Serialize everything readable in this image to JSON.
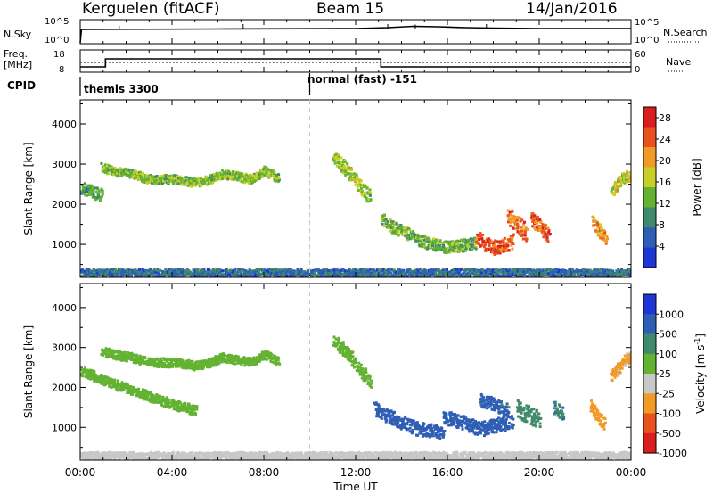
{
  "header": {
    "radar": "Kerguelen (fitACF)",
    "beam": "Beam 15",
    "date": "14/Jan/2016"
  },
  "nsky": {
    "label": "N.Sky",
    "left_ticks": [
      "10^5",
      "10^0"
    ],
    "right_label": "N.Search",
    "right_ticks": [
      "10^5",
      "10^0"
    ]
  },
  "freq": {
    "label_line1": "Freq.",
    "label_line2": "[MHz]",
    "left_ticks": [
      "18",
      "8"
    ],
    "right_label": "Nave",
    "right_ticks": [
      "60",
      "0"
    ]
  },
  "cpid": {
    "label": "CPID",
    "segments": [
      {
        "name": "themis 3300",
        "start_hour": 0
      },
      {
        "name": "normal (fast) -151",
        "start_hour": 10
      }
    ]
  },
  "time_axis": {
    "label": "Time UT",
    "ticks": [
      "00:00",
      "04:00",
      "08:00",
      "12:00",
      "16:00",
      "20:00",
      "00:00"
    ],
    "range_hours": [
      0,
      24
    ]
  },
  "chart_data": [
    {
      "type": "heatmap",
      "ylabel": "Slant Range [km]",
      "yticks": [
        "1000",
        "2000",
        "3000",
        "4000"
      ],
      "ylim": [
        180,
        4600
      ],
      "colorbar": {
        "label": "Power [dB]",
        "ticks": [
          "4",
          "8",
          "12",
          "16",
          "20",
          "24",
          "28"
        ],
        "range": [
          0,
          30
        ],
        "colors": [
          "#1f35d6",
          "#2f5fb4",
          "#3e8a6a",
          "#64b232",
          "#c8cf28",
          "#f29a26",
          "#e8521f",
          "#d81e1e"
        ]
      },
      "regions": [
        {
          "t": [
            0.9,
            1.4,
            2.2,
            3.0,
            3.6,
            4.2,
            5.0,
            5.6,
            6.2,
            6.8,
            7.4,
            8.0,
            8.6
          ],
          "r": [
            2950,
            2850,
            2780,
            2650,
            2650,
            2650,
            2560,
            2640,
            2780,
            2720,
            2650,
            2860,
            2680
          ],
          "w": 110,
          "v": 14
        },
        {
          "t": [
            0.0,
            0.5,
            0.9
          ],
          "r": [
            2450,
            2320,
            2250
          ],
          "w": 160,
          "v": 11
        },
        {
          "t": [
            11.0,
            11.4,
            11.8,
            12.2,
            12.6
          ],
          "r": [
            3200,
            3000,
            2750,
            2450,
            2200
          ],
          "w": 170,
          "v": 15
        },
        {
          "t": [
            13.1,
            13.6,
            14.2,
            14.8,
            15.4,
            16.0,
            16.6,
            17.2
          ],
          "r": [
            1650,
            1450,
            1300,
            1100,
            1020,
            950,
            1000,
            1050
          ],
          "w": 150,
          "v": 13
        },
        {
          "t": [
            17.2,
            17.6,
            18.0,
            18.4,
            18.8
          ],
          "r": [
            1200,
            1050,
            950,
            1000,
            1100
          ],
          "w": 180,
          "v": 25
        },
        {
          "t": [
            18.6,
            19.0,
            19.4
          ],
          "r": [
            1750,
            1550,
            1300
          ],
          "w": 220,
          "v": 23
        },
        {
          "t": [
            19.6,
            20.0,
            20.4
          ],
          "r": [
            1700,
            1450,
            1250
          ],
          "w": 200,
          "v": 24
        },
        {
          "t": [
            22.3,
            22.6,
            22.9
          ],
          "r": [
            1600,
            1350,
            1150
          ],
          "w": 180,
          "v": 21
        },
        {
          "t": [
            23.1,
            23.4,
            23.7,
            24.0
          ],
          "r": [
            2300,
            2550,
            2700,
            2750
          ],
          "w": 150,
          "v": 17
        },
        {
          "t": [
            0.0,
            2.0,
            4.0,
            6.0,
            8.0,
            10.0,
            12.0,
            14.0,
            16.0,
            18.0,
            20.0,
            22.0,
            24.0
          ],
          "r": [
            320,
            320,
            320,
            320,
            320,
            320,
            320,
            320,
            320,
            320,
            320,
            320,
            320
          ],
          "w": 90,
          "v": 7
        }
      ]
    },
    {
      "type": "heatmap",
      "ylabel": "Slant Range [km]",
      "yticks": [
        "1000",
        "2000",
        "3000",
        "4000"
      ],
      "ylim": [
        180,
        4600
      ],
      "colorbar": {
        "label": "Velocity [m s^-1]",
        "ticks": [
          "1000",
          "500",
          "100",
          "25",
          "-25",
          "-100",
          "-500",
          "-1000"
        ],
        "range": [
          -1000,
          1000
        ],
        "colors": [
          "#1f35d6",
          "#2f5fb4",
          "#3e8a6a",
          "#64b232",
          "#c8c8c8",
          "#f29a26",
          "#e8521f",
          "#d81e1e"
        ]
      },
      "regions": [
        {
          "t": [
            0.9,
            1.4,
            2.2,
            3.0,
            3.6,
            4.2,
            5.0,
            5.6,
            6.2,
            6.8,
            7.4,
            8.0,
            8.6
          ],
          "r": [
            2950,
            2850,
            2780,
            2650,
            2650,
            2650,
            2560,
            2640,
            2780,
            2720,
            2650,
            2860,
            2680
          ],
          "w": 110,
          "v": 0
        },
        {
          "t": [
            0.0,
            1.0,
            2.0,
            3.0,
            4.0,
            5.0
          ],
          "r": [
            2450,
            2200,
            2000,
            1800,
            1600,
            1450
          ],
          "w": 120,
          "v": 0
        },
        {
          "t": [
            11.0,
            11.4,
            11.8,
            12.2,
            12.6
          ],
          "r": [
            3200,
            3000,
            2750,
            2450,
            2200
          ],
          "w": 170,
          "v": 0
        },
        {
          "t": [
            12.8,
            13.4,
            14.0,
            14.6,
            15.2,
            15.8
          ],
          "r": [
            1500,
            1300,
            1150,
            1000,
            950,
            900
          ],
          "w": 170,
          "v": 200
        },
        {
          "t": [
            15.8,
            16.4,
            17.0,
            17.6,
            18.2,
            18.8
          ],
          "r": [
            1300,
            1200,
            1050,
            1000,
            1100,
            1150
          ],
          "w": 180,
          "v": 250
        },
        {
          "t": [
            17.4,
            17.8,
            18.2,
            18.6
          ],
          "r": [
            1700,
            1650,
            1550,
            1450
          ],
          "w": 160,
          "v": 150
        },
        {
          "t": [
            19.0,
            19.5,
            20.0
          ],
          "r": [
            1500,
            1350,
            1200
          ],
          "w": 220,
          "v": 50
        },
        {
          "t": [
            20.6,
            21.0
          ],
          "r": [
            1550,
            1350
          ],
          "w": 180,
          "v": 80
        },
        {
          "t": [
            22.2,
            22.5,
            22.8
          ],
          "r": [
            1600,
            1350,
            1100
          ],
          "w": 170,
          "v": -200
        },
        {
          "t": [
            23.1,
            23.4,
            23.7,
            24.0
          ],
          "r": [
            2300,
            2500,
            2700,
            2800
          ],
          "w": 150,
          "v": -150
        },
        {
          "t": [
            0.0,
            2.0,
            4.0,
            6.0,
            8.0,
            10.0,
            12.0,
            14.0,
            16.0,
            18.0,
            20.0,
            22.0,
            24.0
          ],
          "r": [
            320,
            320,
            320,
            320,
            320,
            320,
            320,
            320,
            320,
            320,
            320,
            320,
            320
          ],
          "w": 90,
          "v": -60
        }
      ]
    }
  ]
}
